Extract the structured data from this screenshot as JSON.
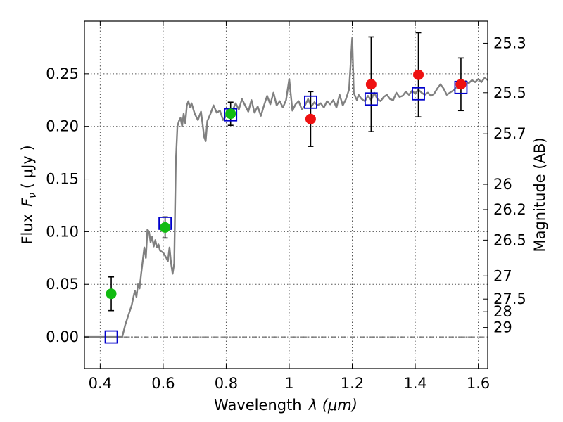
{
  "chart_data": {
    "type": "scatter",
    "xlabel_text": "Wavelength",
    "xlabel_symbol": "λ (μm)",
    "ylabel_text": "Flux",
    "ylabel_symbol": "F",
    "ylabel_sub": "ν",
    "ylabel_unit": "( μJy )",
    "y2label": "Magnitude (AB)",
    "xlim": [
      0.35,
      1.63
    ],
    "ylim": [
      -0.03,
      0.3
    ],
    "grid": true,
    "xticks": [
      0.4,
      0.6,
      0.8,
      1.0,
      1.2,
      1.4,
      1.6
    ],
    "xtick_labels": [
      "0.4",
      "0.6",
      "0.8",
      "1",
      "1.2",
      "1.4",
      "1.6"
    ],
    "yticks": [
      0.0,
      0.05,
      0.1,
      0.15,
      0.2,
      0.25
    ],
    "ytick_labels": [
      "0.00",
      "0.05",
      "0.10",
      "0.15",
      "0.20",
      "0.25"
    ],
    "mag_ticks": [
      {
        "label": "25.3",
        "flux": 0.279
      },
      {
        "label": "25.5",
        "flux": 0.232
      },
      {
        "label": "25.7",
        "flux": 0.193
      },
      {
        "label": "26",
        "flux": 0.145
      },
      {
        "label": "26.2",
        "flux": 0.121
      },
      {
        "label": "26.5",
        "flux": 0.092
      },
      {
        "label": "27",
        "flux": 0.058
      },
      {
        "label": "27.5",
        "flux": 0.036
      },
      {
        "label": "28",
        "flux": 0.024
      },
      {
        "label": "29",
        "flux": 0.009
      }
    ],
    "series": [
      {
        "name": "green photometry",
        "color": "#11bb11",
        "marker": "circle",
        "points": [
          {
            "x": 0.435,
            "y": 0.041,
            "err": 0.016
          },
          {
            "x": 0.606,
            "y": 0.104,
            "err": 0.01
          },
          {
            "x": 0.814,
            "y": 0.212,
            "err": 0.011
          }
        ]
      },
      {
        "name": "red photometry",
        "color": "#ee1111",
        "marker": "circle",
        "points": [
          {
            "x": 1.068,
            "y": 0.207,
            "err": 0.026
          },
          {
            "x": 1.26,
            "y": 0.24,
            "err": 0.045
          },
          {
            "x": 1.41,
            "y": 0.249,
            "err": 0.04
          },
          {
            "x": 1.545,
            "y": 0.24,
            "err": 0.025
          }
        ]
      },
      {
        "name": "model photometry",
        "color": "#0000cc",
        "marker": "square",
        "points": [
          {
            "x": 0.435,
            "y": 0.0
          },
          {
            "x": 0.606,
            "y": 0.108
          },
          {
            "x": 0.814,
            "y": 0.211
          },
          {
            "x": 1.068,
            "y": 0.223
          },
          {
            "x": 1.26,
            "y": 0.226
          },
          {
            "x": 1.41,
            "y": 0.231
          },
          {
            "x": 1.545,
            "y": 0.237
          }
        ]
      },
      {
        "name": "model spectrum",
        "color": "#808080",
        "marker": "line",
        "x": [
          0.35,
          0.47,
          0.48,
          0.5,
          0.51,
          0.515,
          0.52,
          0.525,
          0.53,
          0.535,
          0.54,
          0.545,
          0.55,
          0.555,
          0.56,
          0.565,
          0.57,
          0.575,
          0.58,
          0.585,
          0.59,
          0.6,
          0.61,
          0.615,
          0.62,
          0.625,
          0.63,
          0.635,
          0.64,
          0.645,
          0.65,
          0.655,
          0.66,
          0.665,
          0.67,
          0.675,
          0.68,
          0.685,
          0.69,
          0.7,
          0.71,
          0.72,
          0.725,
          0.73,
          0.735,
          0.74,
          0.75,
          0.76,
          0.77,
          0.78,
          0.79,
          0.8,
          0.81,
          0.82,
          0.83,
          0.84,
          0.85,
          0.86,
          0.87,
          0.88,
          0.89,
          0.9,
          0.91,
          0.92,
          0.93,
          0.94,
          0.95,
          0.96,
          0.97,
          0.98,
          0.99,
          1.0,
          1.01,
          1.02,
          1.03,
          1.04,
          1.05,
          1.06,
          1.07,
          1.08,
          1.09,
          1.1,
          1.11,
          1.12,
          1.13,
          1.14,
          1.15,
          1.16,
          1.17,
          1.18,
          1.19,
          1.2,
          1.205,
          1.21,
          1.215,
          1.22,
          1.23,
          1.24,
          1.25,
          1.26,
          1.27,
          1.28,
          1.29,
          1.3,
          1.31,
          1.32,
          1.33,
          1.34,
          1.35,
          1.36,
          1.37,
          1.38,
          1.39,
          1.4,
          1.41,
          1.42,
          1.43,
          1.44,
          1.45,
          1.46,
          1.47,
          1.48,
          1.49,
          1.5,
          1.51,
          1.52,
          1.53,
          1.54,
          1.55,
          1.56,
          1.57,
          1.58,
          1.59,
          1.6,
          1.61,
          1.62,
          1.63
        ],
        "y": [
          0.0,
          0.0,
          0.012,
          0.03,
          0.044,
          0.038,
          0.05,
          0.046,
          0.06,
          0.072,
          0.085,
          0.075,
          0.102,
          0.1,
          0.09,
          0.095,
          0.086,
          0.092,
          0.085,
          0.088,
          0.082,
          0.08,
          0.075,
          0.072,
          0.085,
          0.07,
          0.06,
          0.07,
          0.165,
          0.2,
          0.205,
          0.208,
          0.2,
          0.212,
          0.203,
          0.22,
          0.224,
          0.218,
          0.222,
          0.212,
          0.206,
          0.214,
          0.202,
          0.19,
          0.186,
          0.205,
          0.212,
          0.22,
          0.213,
          0.215,
          0.206,
          0.21,
          0.212,
          0.215,
          0.222,
          0.216,
          0.226,
          0.22,
          0.214,
          0.225,
          0.213,
          0.219,
          0.21,
          0.22,
          0.229,
          0.221,
          0.232,
          0.22,
          0.224,
          0.218,
          0.225,
          0.245,
          0.215,
          0.221,
          0.224,
          0.216,
          0.22,
          0.226,
          0.219,
          0.223,
          0.22,
          0.222,
          0.218,
          0.224,
          0.221,
          0.225,
          0.218,
          0.23,
          0.22,
          0.226,
          0.235,
          0.284,
          0.232,
          0.228,
          0.225,
          0.23,
          0.226,
          0.224,
          0.229,
          0.225,
          0.232,
          0.226,
          0.224,
          0.228,
          0.23,
          0.226,
          0.225,
          0.232,
          0.228,
          0.229,
          0.233,
          0.23,
          0.234,
          0.231,
          0.235,
          0.232,
          0.23,
          0.232,
          0.229,
          0.231,
          0.236,
          0.24,
          0.236,
          0.23,
          0.232,
          0.234,
          0.237,
          0.24,
          0.238,
          0.243,
          0.241,
          0.244,
          0.242,
          0.245,
          0.242,
          0.246,
          0.244
        ]
      }
    ]
  }
}
